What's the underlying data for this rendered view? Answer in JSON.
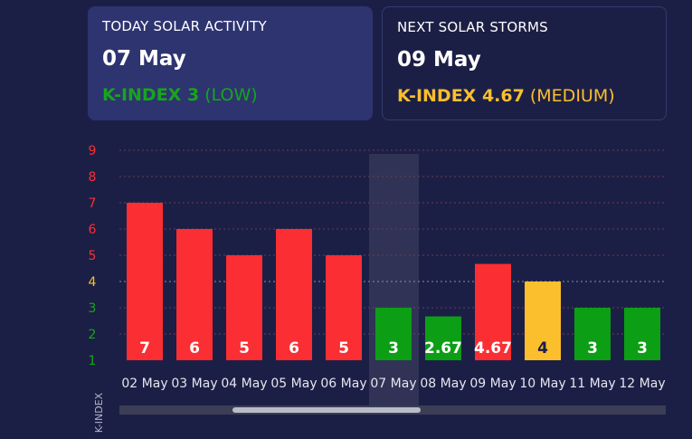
{
  "today": {
    "label": "TODAY SOLAR ACTIVITY",
    "date": "07 May",
    "k_label": "K-INDEX 3",
    "k_level": "(LOW)",
    "color": "#16a51c"
  },
  "next": {
    "label": "NEXT SOLAR STORMS",
    "date": "09 May",
    "k_label": "K-INDEX 4.67",
    "k_level": "(MEDIUM)",
    "color": "#fbbf2d"
  },
  "chart_data": {
    "type": "bar",
    "categories": [
      "02 May",
      "03 May",
      "04 May",
      "05 May",
      "06 May",
      "07 May",
      "08 May",
      "09 May",
      "10 May",
      "11 May",
      "12 May"
    ],
    "values": [
      7,
      6,
      5,
      6,
      5,
      3,
      2.67,
      4.67,
      4,
      3,
      3
    ],
    "value_labels": [
      "7",
      "6",
      "5",
      "6",
      "5",
      "3",
      "2.67",
      "4.67",
      "4",
      "3",
      "3"
    ],
    "bar_colors": [
      "#fb2e33",
      "#fb2e33",
      "#fb2e33",
      "#fb2e33",
      "#fb2e33",
      "#0c9e14",
      "#0c9e14",
      "#fb2e33",
      "#fbbf2d",
      "#0c9e14",
      "#0c9e14"
    ],
    "label_colors": [
      "#ffffff",
      "#ffffff",
      "#ffffff",
      "#ffffff",
      "#ffffff",
      "#ffffff",
      "#ffffff",
      "#ffffff",
      "#1c1f45",
      "#ffffff",
      "#ffffff"
    ],
    "highlight_index": 5,
    "yticks": [
      1,
      2,
      3,
      4,
      5,
      6,
      7,
      8,
      9
    ],
    "ytick_labels": [
      "1",
      "2",
      "3",
      "4",
      "5",
      "6",
      "7",
      "8",
      "9"
    ],
    "ytick_colors": [
      "#16a51c",
      "#16a51c",
      "#16a51c",
      "#fbbf2d",
      "#fb2e33",
      "#fb2e33",
      "#fb2e33",
      "#fb2e33",
      "#fb2e33"
    ],
    "ylim": [
      1,
      9
    ],
    "ylabel": "K-INDEX",
    "grid": true
  }
}
